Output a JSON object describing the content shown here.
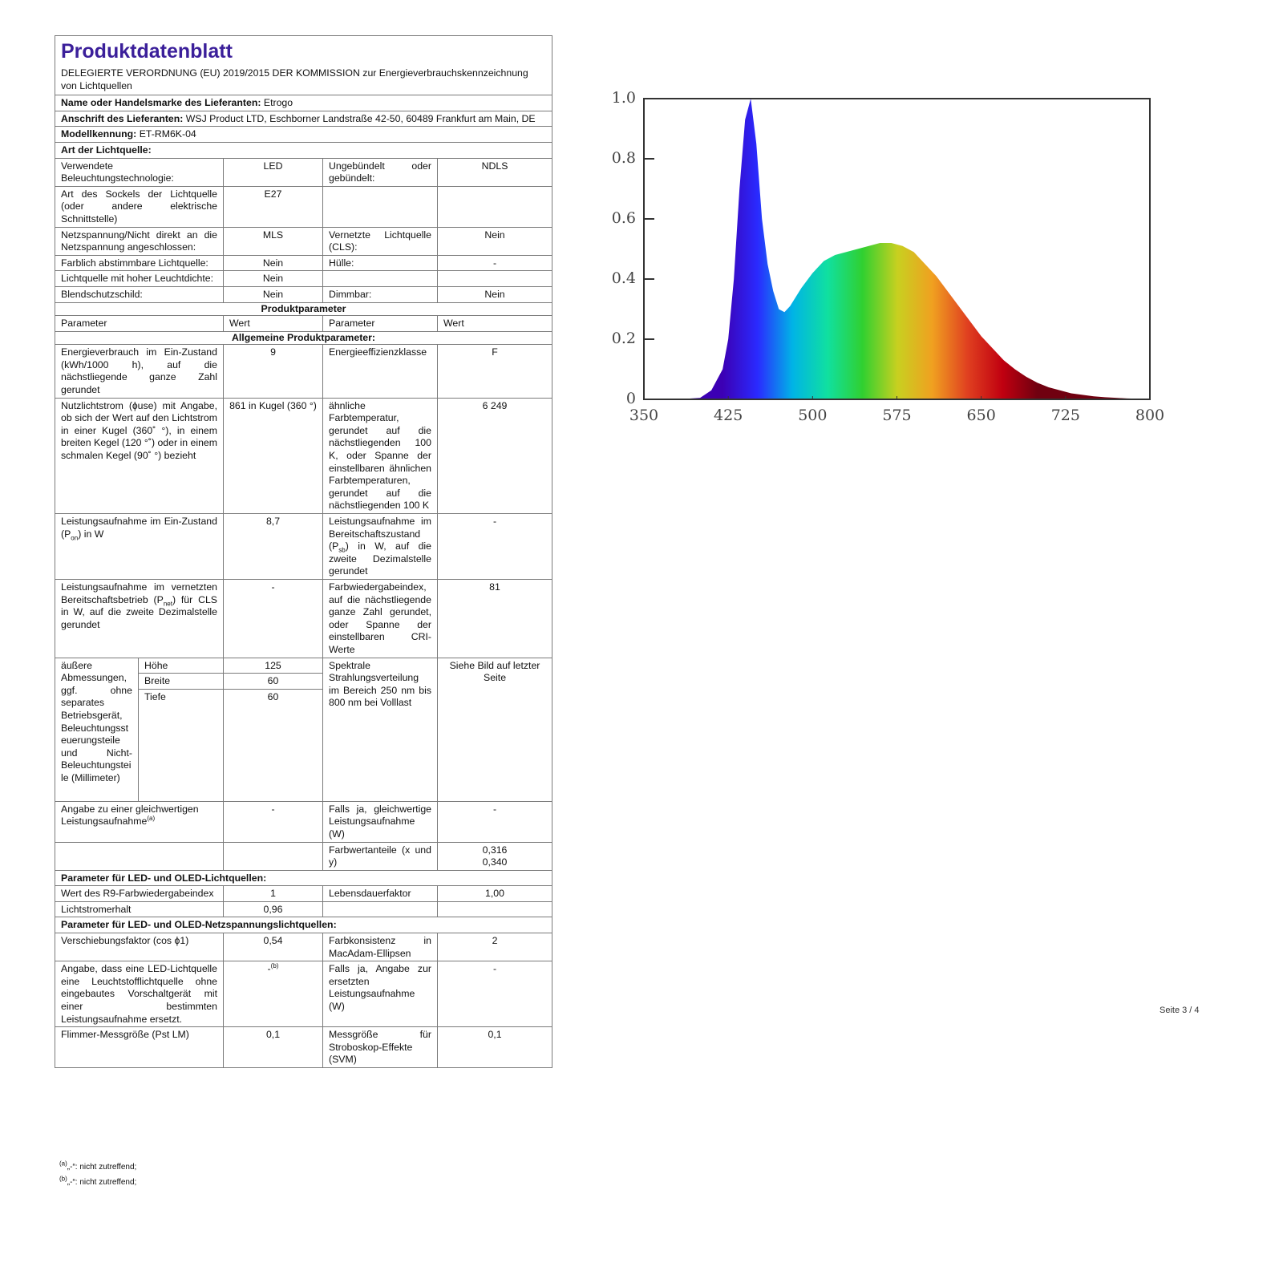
{
  "header": {
    "title": "Produktdatenblatt",
    "regulation": "DELEGIERTE VERORDNUNG (EU) 2019/2015 DER KOMMISSION zur Energieverbrauchskennzeichnung von Lichtquellen"
  },
  "supplier": {
    "name": {
      "label": "Name oder Handelsmarke des Lieferanten:",
      "value": "Etrogo"
    },
    "address": {
      "label": "Anschrift des Lieferanten:",
      "value": "WSJ Product LTD, Eschborner Landstraße 42-50, 60489 Frankfurt am Main, DE"
    },
    "model": {
      "label": "Modellkennung:",
      "value": "ET-RM6K-04"
    },
    "type_heading": "Art der Lichtquelle:"
  },
  "light_source": [
    [
      "Verwendete Beleuchtungstechnologie:",
      "LED",
      "Ungebündelt oder gebündelt:",
      "NDLS"
    ],
    [
      "Art des Sockels der Lichtquelle (oder andere elektrische Schnittstelle)",
      "E27"
    ],
    [
      "Netzspannung/Nicht direkt an die Netzspannung angeschlossen:",
      "MLS",
      "Vernetzte Lichtquelle (CLS):",
      "Nein"
    ],
    [
      "Farblich abstimmbare Lichtquelle:",
      "Nein",
      "Hülle:",
      "-"
    ],
    [
      "Lichtquelle mit hoher Leuchtdichte:",
      "Nein"
    ],
    [
      "Blendschutzschild:",
      "Nein",
      "Dimmbar:",
      "Nein"
    ]
  ],
  "params": {
    "heading": "Produktparameter",
    "columns": [
      "Parameter",
      "Wert",
      "Parameter",
      "Wert"
    ],
    "general_heading": "Allgemeine Produktparameter:"
  },
  "general": [
    [
      "Energieverbrauch im Ein-Zustand (kWh/1000 h), auf die nächstliegende ganze Zahl gerundet",
      "9",
      "Energieeffizienzklasse",
      "F"
    ],
    [
      "Nutzlichtstrom (ɸuse) mit Angabe, ob sich der Wert auf den Lichtstrom in einer Kugel (360˚ °), in einem breiten Kegel (120 °˚) oder in einem schmalen Kegel (90˚ °) bezieht",
      "861 in Kugel (360 °)",
      "ähnliche Farbtemperatur, gerundet auf die nächstliegenden 100 K, oder Spanne der einstellbaren ähnlichen Farbtemperaturen, gerundet auf die nächstliegenden 100 K",
      "6 249"
    ],
    [
      [
        "Leistungsaufnahme im Ein-Zustand (P",
        "on",
        ") in W"
      ],
      "8,7",
      [
        "Leistungsaufnahme im Bereitschaftszustand (P",
        "sb",
        ") in W, auf die zweite Dezimalstelle gerundet"
      ],
      "-"
    ],
    [
      [
        "Leistungsaufnahme im vernetzten Bereitschaftsbetrieb (P",
        "net",
        ") für CLS in W, auf die zweite Dezimalstelle gerundet"
      ],
      "-",
      "Farbwiedergabeindex, auf die nächstliegende ganze Zahl gerundet, oder Spanne der einstellbaren CRI-Werte",
      "81"
    ]
  ],
  "dimensions": {
    "label": "äußere Abmessungen, ggf. ohne separates Betriebsgerät, Beleuchtungssteuerungsteile und Nicht-Beleuchtungsteile (Millimeter)",
    "items": [
      [
        "Höhe",
        "125"
      ],
      [
        "Breite",
        "60"
      ],
      [
        "Tiefe",
        "60"
      ]
    ],
    "spectrum_label": "Spektrale Strahlungsverteilung im Bereich 250 nm bis 800 nm bei Volllast",
    "spectrum_value": "Siehe Bild auf letzter Seite"
  },
  "equivalent": [
    [
      "Angabe zu einer gleichwertigen Leistungsaufnahme",
      "(a)"
    ],
    "-",
    "Falls ja, gleichwertige Leistungsaufnahme (W)",
    "-"
  ],
  "chromaticity": {
    "label": "Farbwertanteile (x und y)",
    "values": [
      "0,316",
      "0,340"
    ]
  },
  "led": {
    "heading": "Parameter für LED- und OLED-Lichtquellen:",
    "rows": [
      [
        "Wert des R9-Farbwiedergabeindex",
        "1",
        "Lebensdauerfaktor",
        "1,00"
      ],
      [
        "Lichtstromerhalt",
        "0,96"
      ]
    ]
  },
  "mains": {
    "heading": "Parameter für LED- und OLED-Netzspannungslichtquellen:",
    "rows": [
      [
        "Verschiebungsfaktor (cos ϕ1)",
        "0,54",
        "Farbkonsistenz in MacAdam-Ellipsen",
        "2"
      ],
      [
        "Angabe, dass eine LED-Lichtquelle eine Leuchtstofflichtquelle ohne eingebautes Vorschaltgerät mit einer bestimmten Leistungsaufnahme ersetzt.",
        [
          "-",
          "(b)"
        ],
        "Falls ja, Angabe zur ersetzten Leistungsaufnahme (W)",
        "-"
      ],
      [
        "Flimmer-Messgröße (Pst LM)",
        "0,1",
        "Messgröße für Stroboskop-Effekte (SVM)",
        "0,1"
      ]
    ]
  },
  "footnotes": [
    [
      "(a)",
      "„-“: nicht zutreffend;"
    ],
    [
      "(b)",
      "„-“: nicht zutreffend;"
    ]
  ],
  "page": "Seite 3 / 4",
  "chart_data": {
    "type": "area",
    "x": [
      350,
      380,
      400,
      410,
      420,
      425,
      430,
      435,
      440,
      445,
      450,
      455,
      460,
      465,
      470,
      475,
      480,
      490,
      500,
      510,
      520,
      530,
      540,
      550,
      560,
      570,
      580,
      590,
      600,
      610,
      620,
      630,
      640,
      650,
      660,
      670,
      680,
      690,
      700,
      710,
      720,
      730,
      740,
      750,
      760,
      770,
      780,
      790,
      800
    ],
    "values": [
      0,
      0,
      0.005,
      0.03,
      0.1,
      0.2,
      0.4,
      0.7,
      0.93,
      1,
      0.85,
      0.6,
      0.45,
      0.36,
      0.3,
      0.29,
      0.31,
      0.37,
      0.42,
      0.46,
      0.48,
      0.49,
      0.5,
      0.51,
      0.52,
      0.52,
      0.51,
      0.49,
      0.45,
      0.41,
      0.36,
      0.31,
      0.26,
      0.21,
      0.17,
      0.13,
      0.1,
      0.075,
      0.055,
      0.04,
      0.03,
      0.02,
      0.015,
      0.01,
      0.007,
      0.005,
      0.003,
      0.002,
      0.001
    ],
    "colors": [
      "#3c00b4",
      "#2a2aff",
      "#00b4e6",
      "#10e0a0",
      "#30d030",
      "#c8d020",
      "#f0a020",
      "#e04020",
      "#c00010",
      "#700010"
    ],
    "xlim": [
      350,
      800
    ],
    "ylim": [
      0,
      1
    ],
    "xticks": [
      350,
      425,
      500,
      575,
      650,
      725,
      800
    ],
    "yticks": [
      0,
      0.2,
      0.4,
      0.6,
      0.8,
      {
        "value": 1,
        "label": "1.0"
      }
    ]
  }
}
